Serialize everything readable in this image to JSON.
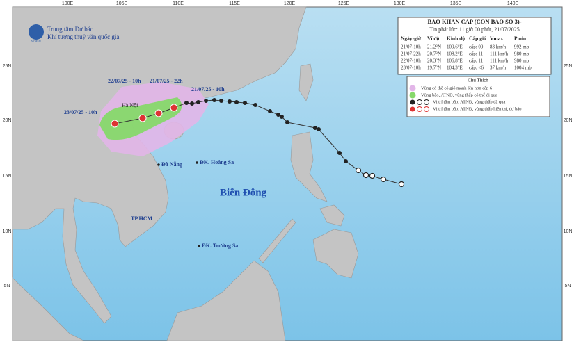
{
  "header": {
    "org_line1": "Trung tâm Dự báo",
    "org_line2": "Khí tượng thuỷ văn quốc gia",
    "logo_text": "NCHMF"
  },
  "bulletin": {
    "title": "BAO KHAN CAP (CON BAO SO 3)-",
    "issued": "Tin phát lúc: 11 giờ 00 phút, 21/07/2025",
    "columns": [
      "Ngày-giờ",
      "Vĩ độ",
      "Kinh độ",
      "Cấp gió",
      "Vmax",
      "Pmin"
    ],
    "rows": [
      [
        "21/07-10h",
        "21.2°N",
        "109.6°E",
        "cấp: 09",
        "83 km/h",
        "992 mb"
      ],
      [
        "21/07-22h",
        "20.7°N",
        "108.2°E",
        "cấp: 11",
        "111 km/h",
        "980 mb"
      ],
      [
        "22/07-10h",
        "20.3°N",
        "106.8°E",
        "cấp: 11",
        "111 km/h",
        "980 mb"
      ],
      [
        "23/07-10h",
        "19.7°N",
        "104.3°E",
        "cấp: <6",
        "37 km/h",
        "1004 mb"
      ]
    ]
  },
  "legend": {
    "title": "Chú Thích",
    "items": [
      "Vùng có thể có gió mạnh lên hơn cấp 6",
      "Vùng bão, ATNĐ, vùng thấp có thể đi qua",
      "Vị trí tâm bão, ATNĐ, vùng thấp đã qua",
      "Vị trí tâm bão, ATNĐ, vùng thấp hiện tại, dự báo"
    ]
  },
  "map": {
    "lon_labels": [
      "100E",
      "105E",
      "110E",
      "115E",
      "120E",
      "125E",
      "130E",
      "135E",
      "140E"
    ],
    "lat_labels": [
      "25N",
      "20N",
      "15N",
      "10N",
      "5N"
    ],
    "places": [
      "Hà Nội",
      "Đà Nẵng",
      "ĐK. Hoàng Sa",
      "Biển Đông",
      "TP.HCM",
      "ĐK. Trường Sa"
    ],
    "forecast_labels": [
      "22/07/25 - 10h",
      "21/07/25 - 22h",
      "21/07/25 - 10h",
      "23/07/25 - 10h"
    ]
  }
}
